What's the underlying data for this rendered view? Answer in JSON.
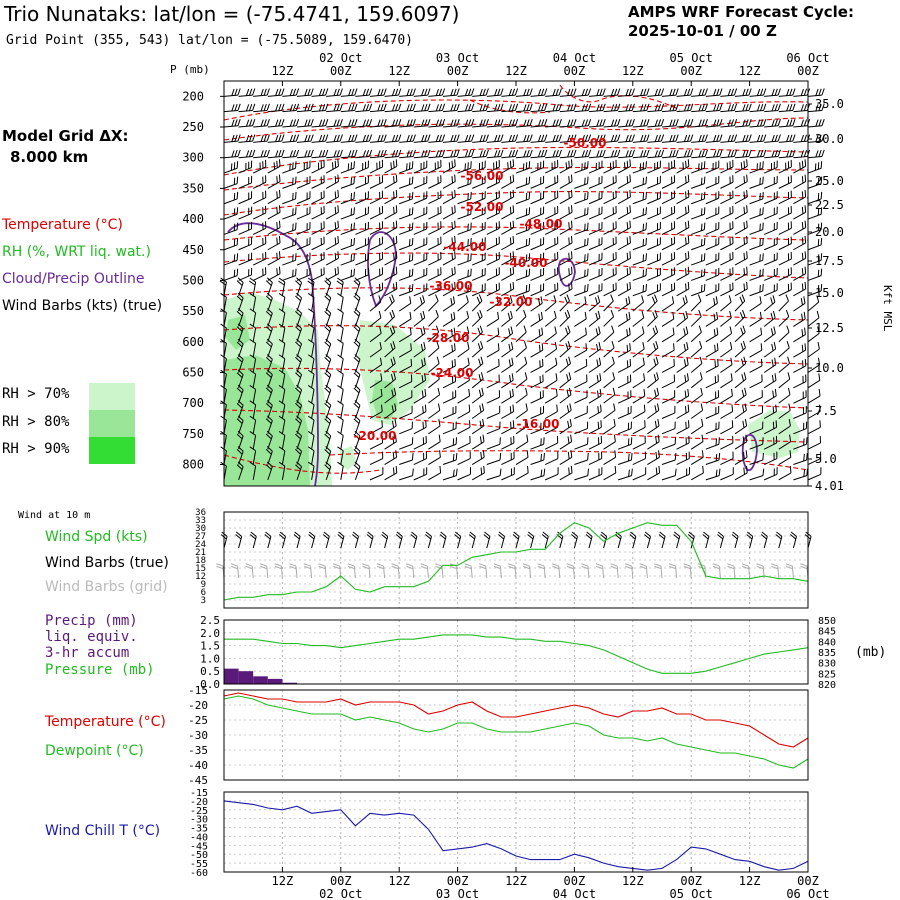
{
  "header": {
    "title": "Trio Nunataks:  lat/lon = (-75.4741, 159.6097)",
    "subtitle": "Grid Point (355, 543) lat/lon = (-75.5089, 159.6470)",
    "cycle_label": "AMPS WRF Forecast Cycle:",
    "cycle_value": "2025-10-01 / 00  Z"
  },
  "model_grid": {
    "label": "Model Grid ΔX:",
    "value": "8.000 km"
  },
  "legend_top": {
    "temperature": "Temperature (°C)",
    "rh": "RH (%, WRT liq. wat.)",
    "cloud": "Cloud/Precip Outline",
    "wind": "Wind Barbs (kts) (true)",
    "rh70": "RH > 70%",
    "rh80": "RH > 80%",
    "rh90": "RH > 90%"
  },
  "colors": {
    "temperature": "#dd0000",
    "rh": "#22bb22",
    "cloud": "#6a2a9a",
    "wind_true": "#000000",
    "wind_grid": "#aaaaaa",
    "rh70": "#ccf5cc",
    "rh80": "#99e699",
    "rh90": "#33dd33",
    "windchill": "#1a1aaa",
    "precip": "#5a1a7a"
  },
  "time_axis": {
    "hour_labels": [
      "12Z",
      "00Z",
      "12Z",
      "00Z",
      "12Z",
      "00Z",
      "12Z",
      "00Z",
      "12Z",
      "00Z"
    ],
    "date_labels": [
      "02 Oct",
      "03 Oct",
      "04 Oct",
      "05 Oct",
      "06 Oct"
    ]
  },
  "pressure_axis": {
    "label": "P (mb)",
    "ticks": [
      "200",
      "250",
      "300",
      "350",
      "400",
      "450",
      "500",
      "550",
      "600",
      "650",
      "700",
      "750",
      "800"
    ]
  },
  "height_axis": {
    "label": "Kft MSL",
    "ticks": [
      "35.0",
      "30.0",
      "25.0",
      "22.5",
      "20.0",
      "17.5",
      "15.0",
      "12.5",
      "10.0",
      "7.5",
      "5.0",
      "4.01"
    ]
  },
  "panel_wind": {
    "header": "Wind at 10 m",
    "label_speed": "Wind Spd (kts)",
    "label_true": "Wind Barbs (true)",
    "label_grid": "Wind Barbs (grid)",
    "ticks": [
      "36",
      "33",
      "30",
      "27",
      "24",
      "21",
      "18",
      "15",
      "12",
      "9",
      "6",
      "3"
    ]
  },
  "panel_precip": {
    "label_precip": "Precip (mm)",
    "label_liq": "liq. equiv.",
    "label_accum": "3-hr accum",
    "label_pressure": "Pressure (mb)",
    "left_ticks": [
      "2.5",
      "2.0",
      "1.5",
      "1.0",
      "0.5",
      "0.0"
    ],
    "right_ticks": [
      "850",
      "845",
      "840",
      "835",
      "830",
      "825",
      "820"
    ],
    "right_unit": "(mb)"
  },
  "panel_temp": {
    "label_temp": "Temperature (°C)",
    "label_dew": "Dewpoint (°C)",
    "ticks": [
      "-15",
      "-20",
      "-25",
      "-30",
      "-35",
      "-40",
      "-45"
    ]
  },
  "panel_chill": {
    "label": "Wind Chill T (°C)",
    "ticks": [
      "-15",
      "-20",
      "-25",
      "-30",
      "-35",
      "-40",
      "-45",
      "-50",
      "-55",
      "-60"
    ]
  },
  "contour_labels": [
    "-50.00",
    "-56.00",
    "-52.00",
    "-48.00",
    "-44.00",
    "-40.00",
    "-36.00",
    "-32.00",
    "-28.00",
    "-24.00",
    "-20.00",
    "-16.00"
  ],
  "chart_data": {
    "type": "line",
    "x_hours": [
      0,
      3,
      6,
      9,
      12,
      15,
      18,
      21,
      24,
      27,
      30,
      33,
      36,
      39,
      42,
      45,
      48,
      51,
      54,
      57,
      60,
      63,
      66,
      69,
      72,
      75,
      78,
      81,
      84,
      87,
      90,
      93,
      96,
      99,
      102,
      105,
      108,
      111,
      114,
      117,
      120
    ],
    "series": [
      {
        "name": "Wind Spd (kts)",
        "values": [
          3,
          4,
          4,
          5,
          5,
          6,
          6,
          8,
          12,
          7,
          6,
          8,
          8,
          8,
          10,
          16,
          16,
          19,
          20,
          21,
          21,
          22,
          22,
          28,
          32,
          30,
          25,
          28,
          30,
          32,
          31,
          31,
          25,
          12,
          11,
          11,
          11,
          12,
          11,
          11,
          10
        ]
      },
      {
        "name": "Pressure (mb)",
        "values": [
          841,
          841,
          841,
          840,
          839,
          839,
          838,
          838,
          837,
          838,
          839,
          840,
          841,
          841,
          842,
          843,
          843,
          843,
          842,
          842,
          841,
          841,
          840,
          840,
          839,
          838,
          836,
          833,
          830,
          827,
          825,
          825,
          825,
          826,
          828,
          830,
          832,
          834,
          835,
          836,
          837
        ]
      },
      {
        "name": "Temperature (°C)",
        "values": [
          -17,
          -16,
          -17,
          -18,
          -18,
          -19,
          -19,
          -19,
          -18,
          -20,
          -19,
          -19,
          -19,
          -20,
          -23,
          -22,
          -20,
          -19,
          -22,
          -24,
          -24,
          -23,
          -22,
          -21,
          -20,
          -21,
          -23,
          -24,
          -22,
          -22,
          -21,
          -23,
          -23,
          -25,
          -25,
          -26,
          -27,
          -30,
          -33,
          -34,
          -31
        ]
      },
      {
        "name": "Dewpoint (°C)",
        "values": [
          -18,
          -17,
          -18,
          -20,
          -21,
          -22,
          -23,
          -23,
          -23,
          -25,
          -24,
          -25,
          -26,
          -28,
          -29,
          -28,
          -26,
          -26,
          -28,
          -29,
          -29,
          -29,
          -28,
          -27,
          -26,
          -27,
          -30,
          -31,
          -31,
          -32,
          -31,
          -33,
          -34,
          -35,
          -36,
          -36,
          -37,
          -38,
          -40,
          -41,
          -38
        ]
      },
      {
        "name": "Wind Chill T (°C)",
        "values": [
          -20,
          -21,
          -22,
          -24,
          -25,
          -23,
          -27,
          -26,
          -25,
          -34,
          -27,
          -28,
          -27,
          -28,
          -36,
          -48,
          -47,
          -46,
          -44,
          -47,
          -51,
          -53,
          -53,
          -53,
          -50,
          -52,
          -55,
          -57,
          -58,
          -59,
          -58,
          -53,
          -46,
          -47,
          -50,
          -53,
          -54,
          -57,
          -59,
          -58,
          -54
        ]
      },
      {
        "name": "Precip (mm)",
        "values": [
          0.6,
          0.5,
          0.3,
          0.2,
          0.05,
          0,
          0,
          0,
          0,
          0,
          0,
          0,
          0,
          0,
          0,
          0,
          0,
          0,
          0,
          0,
          0,
          0,
          0,
          0,
          0,
          0,
          0,
          0,
          0,
          0,
          0,
          0,
          0,
          0,
          0,
          0,
          0,
          0,
          0,
          0,
          0
        ]
      }
    ],
    "ylim_wind": [
      0,
      36
    ],
    "ylim_precip": [
      0,
      2.5
    ],
    "ylim_pressure": [
      820,
      850
    ],
    "ylim_temp": [
      -45,
      -15
    ],
    "ylim_chill": [
      -60,
      -15
    ],
    "grid": true
  }
}
